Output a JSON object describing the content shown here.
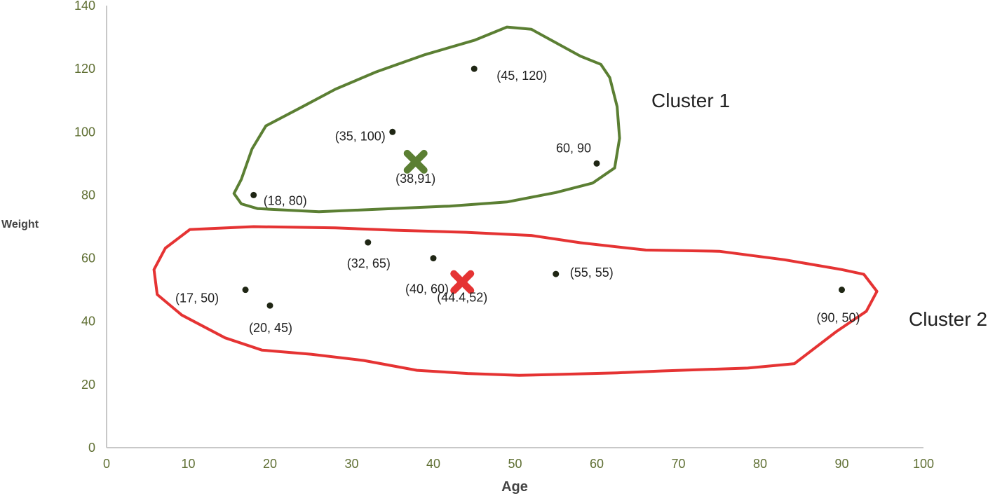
{
  "chart_data": {
    "type": "scatter",
    "xlabel": "Age",
    "ylabel": "Weight",
    "xlim": [
      0,
      100
    ],
    "ylim": [
      0,
      140
    ],
    "x_ticks": [
      0,
      10,
      20,
      30,
      40,
      50,
      60,
      70,
      80,
      90,
      100
    ],
    "y_ticks": [
      0,
      20,
      40,
      60,
      80,
      100,
      120,
      140
    ],
    "grid": false,
    "colors": {
      "axis": "#c8c8c8",
      "tick_label": "#5f6f33",
      "point": "#1f2614",
      "cluster1": "#5b7f33",
      "cluster2": "#e53333"
    },
    "points": [
      {
        "x": 45,
        "y": 120,
        "label": "(45,  120)",
        "cluster": 1
      },
      {
        "x": 35,
        "y": 100,
        "label": "(35,  100)",
        "cluster": 1
      },
      {
        "x": 60,
        "y": 90,
        "label": "60, 90",
        "cluster": 1
      },
      {
        "x": 18,
        "y": 80,
        "label": "(18,  80)",
        "cluster": 1
      },
      {
        "x": 32,
        "y": 65,
        "label": "(32, 65)",
        "cluster": 2
      },
      {
        "x": 40,
        "y": 60,
        "label": "(40,  60)",
        "cluster": 2
      },
      {
        "x": 55,
        "y": 55,
        "label": "(55,  55)",
        "cluster": 2
      },
      {
        "x": 17,
        "y": 50,
        "label": "(17,  50)",
        "cluster": 2
      },
      {
        "x": 20,
        "y": 45,
        "label": "(20, 45)",
        "cluster": 2
      },
      {
        "x": 90,
        "y": 50,
        "label": "(90,  50)",
        "cluster": 2
      }
    ],
    "centroids": [
      {
        "x": 38,
        "y": 91,
        "label": "(38,91)",
        "cluster": 1
      },
      {
        "x": 44.4,
        "y": 52,
        "label": "(44.4,52)",
        "cluster": 2
      }
    ],
    "clusters": [
      {
        "id": 1,
        "name": "Cluster 1"
      },
      {
        "id": 2,
        "name": "Cluster 2"
      }
    ]
  }
}
